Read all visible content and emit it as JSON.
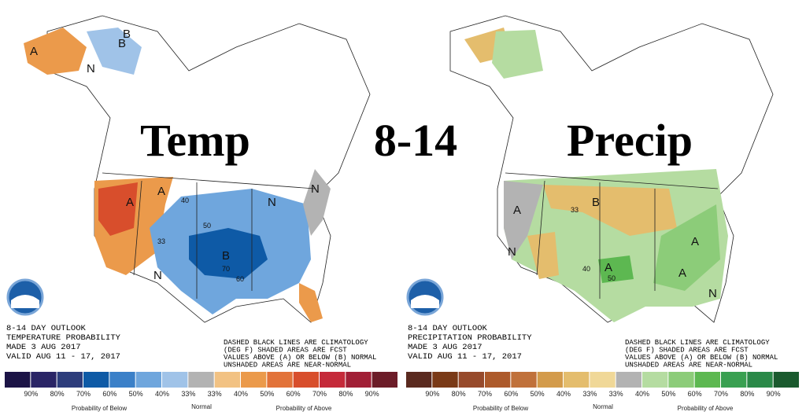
{
  "overlay": {
    "left": "Temp",
    "center": "8-14",
    "right": "Precip"
  },
  "maps": [
    {
      "outlook_lines": [
        "8-14 DAY OUTLOOK",
        "TEMPERATURE PROBABILITY",
        "MADE  3 AUG 2017",
        "VALID  AUG 11 - 17, 2017"
      ],
      "notes": [
        "DASHED BLACK LINES ARE CLIMATOLOGY",
        "(DEG F) SHADED AREAS ARE FCST",
        "VALUES ABOVE (A) OR BELOW (B) NORMAL",
        "UNSHADED AREAS ARE NEAR-NORMAL"
      ],
      "labels": [
        "A",
        "B",
        "N",
        "A",
        "A",
        "B",
        "N",
        "N",
        "N",
        "B",
        "40",
        "33",
        "50",
        "60",
        "70"
      ],
      "legend": {
        "ticks": [
          "90%",
          "80%",
          "70%",
          "60%",
          "50%",
          "40%",
          "33%",
          "33%",
          "40%",
          "50%",
          "60%",
          "70%",
          "80%",
          "90%"
        ],
        "colors": [
          "#1c1446",
          "#2a2566",
          "#2d3d7c",
          "#0e5aa6",
          "#3b80c8",
          "#6fa6dd",
          "#a0c3e8",
          "#b3b3b3",
          "#f2c283",
          "#eb9a4b",
          "#e2733a",
          "#d84e2c",
          "#c52a3a",
          "#a11f36",
          "#6c1c28"
        ],
        "below": "Probability of Below",
        "normal": "Normal",
        "above": "Probability of Above"
      }
    },
    {
      "outlook_lines": [
        "8-14 DAY OUTLOOK",
        "PRECIPITATION PROBABILITY",
        "MADE  3 AUG 2017",
        "VALID  AUG 11 - 17, 2017"
      ],
      "notes": [
        "DASHED BLACK LINES ARE CLIMATOLOGY",
        "(DEG F) SHADED AREAS ARE FCST",
        "VALUES ABOVE (A) OR BELOW (B) NORMAL",
        "UNSHADED AREAS ARE NEAR-NORMAL"
      ],
      "labels": [
        "B",
        "A",
        "N",
        "A",
        "A",
        "A",
        "N",
        "33",
        "40",
        "50"
      ],
      "legend": {
        "ticks": [
          "90%",
          "80%",
          "70%",
          "60%",
          "50%",
          "40%",
          "33%",
          "33%",
          "40%",
          "50%",
          "60%",
          "70%",
          "80%",
          "90%"
        ],
        "colors": [
          "#5a2a1f",
          "#7a3a17",
          "#974a2b",
          "#ad5a2b",
          "#c0713b",
          "#d39b4b",
          "#e4bd6d",
          "#f0d898",
          "#b3b3b3",
          "#b5dca1",
          "#8ccc79",
          "#5db851",
          "#39a051",
          "#2a8948",
          "#1a5a2e"
        ],
        "below": "Probability of Below",
        "normal": "Normal",
        "above": "Probability of Above"
      }
    }
  ]
}
